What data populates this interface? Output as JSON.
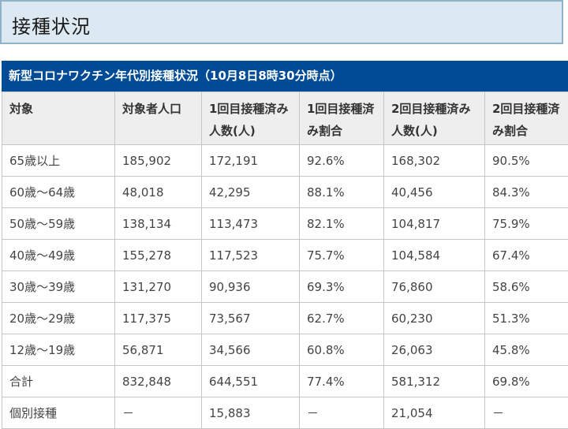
{
  "heading": "接種状況",
  "table": {
    "caption": "新型コロナワクチン年代別接種状況（10月8日8時30分時点）",
    "headers": [
      "対象",
      "対象者人口",
      "1回目接種済み人数(人)",
      "1回目接種済み割合",
      "2回目接種済み人数(人)",
      "2回目接種済み割合"
    ],
    "rows": [
      [
        "65歳以上",
        "185,902",
        "172,191",
        "92.6%",
        "168,302",
        "90.5%"
      ],
      [
        "60歳～64歳",
        "48,018",
        "42,295",
        "88.1%",
        "40,456",
        "84.3%"
      ],
      [
        "50歳～59歳",
        "138,134",
        "113,473",
        "82.1%",
        "104,817",
        "75.9%"
      ],
      [
        "40歳～49歳",
        "155,278",
        "117,523",
        "75.7%",
        "104,584",
        "67.4%"
      ],
      [
        "30歳～39歳",
        "131,270",
        "90,936",
        "69.3%",
        "76,860",
        "58.6%"
      ],
      [
        "20歳～29歳",
        "117,375",
        "73,567",
        "62.7%",
        "60,230",
        "51.3%"
      ],
      [
        "12歳～19歳",
        "56,871",
        "34,566",
        "60.8%",
        "26,063",
        "45.8%"
      ],
      [
        "合計",
        "832,848",
        "644,551",
        "77.4%",
        "581,312",
        "69.8%"
      ],
      [
        "個別接種",
        "－",
        "15,883",
        "－",
        "21,054",
        "－"
      ]
    ]
  },
  "colors": {
    "caption_bg": "#004b95",
    "heading_bg": "#dde9f2",
    "heading_border": "#8fb3c9",
    "header_bg": "#eeeeee",
    "border": "#c6c6c6"
  }
}
